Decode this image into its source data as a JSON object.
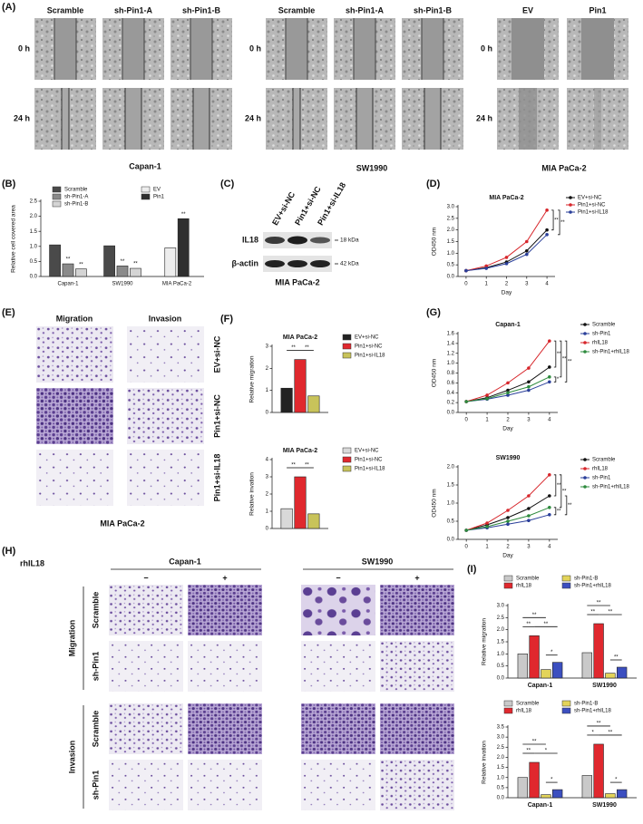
{
  "panel_labels": {
    "A": "(A)",
    "B": "(B)",
    "C": "(C)",
    "D": "(D)",
    "E": "(E)",
    "F": "(F)",
    "G": "(G)",
    "H": "(H)",
    "I": "(I)"
  },
  "figure": {
    "A": {
      "columns_1": [
        "Scramble",
        "sh-Pin1-A",
        "sh-Pin1-B"
      ],
      "columns_2": [
        "Scramble",
        "sh-Pin1-A",
        "sh-Pin1-B"
      ],
      "columns_3": [
        "EV",
        "Pin1"
      ],
      "rows": [
        "0 h",
        "24 h"
      ],
      "cell_lines": [
        "Capan-1",
        "SW1990",
        "MIA PaCa-2"
      ]
    },
    "C": {
      "lanes": [
        "EV+si-NC",
        "Pin1+si-NC",
        "Pin1+si-IL18"
      ],
      "proteins": [
        "IL18",
        "β-actin"
      ],
      "sizes": [
        "18 kDa",
        "42 kDa"
      ],
      "cell_line": "MIA PaCa-2"
    },
    "E": {
      "columns": [
        "Migration",
        "Invasion"
      ],
      "rows": [
        "EV+si-NC",
        "Pin1+si-NC",
        "Pin1+si-IL18"
      ],
      "cell_line": "MIA PaCa-2"
    },
    "H": {
      "treatment": "rhIL18",
      "cell_lines": [
        "Capan-1",
        "SW1990"
      ],
      "levels": [
        "−",
        "+"
      ],
      "assays": [
        "Migration",
        "Invasion"
      ],
      "rows": [
        "Scramble",
        "sh-Pin1"
      ]
    }
  },
  "chart_data": [
    {
      "type": "bar",
      "ylabel": "Relative cell covered area",
      "categories": [
        "Capan-1",
        "SW1990",
        "MIA PaCa-2"
      ],
      "series": [
        {
          "name": "Scramble",
          "color": "#4a4a4a",
          "values": [
            1.05,
            1.02,
            null
          ]
        },
        {
          "name": "sh-Pin1-A",
          "color": "#8a8a8a",
          "values": [
            0.42,
            0.35,
            null
          ],
          "significance": [
            "**",
            "**",
            null
          ]
        },
        {
          "name": "sh-Pin1-B",
          "color": "#d4d4d4",
          "values": [
            0.25,
            0.27,
            null
          ],
          "significance": [
            "**",
            "**",
            null
          ]
        },
        {
          "name": "EV",
          "color": "#ededed",
          "values": [
            null,
            null,
            0.95
          ]
        },
        {
          "name": "Pin1",
          "color": "#2f2f2f",
          "values": [
            null,
            null,
            1.92
          ],
          "significance": [
            null,
            null,
            "**"
          ]
        }
      ],
      "ylim": [
        0,
        2.5
      ],
      "yticks": [
        {
          "value": 0,
          "label": "0.0"
        },
        0.5,
        {
          "value": 1,
          "label": "1.0"
        },
        1.5,
        {
          "value": 2,
          "label": "2.0"
        },
        2.5
      ]
    },
    {
      "type": "line",
      "title": "MIA PaCa-2",
      "xlabel": "Day",
      "ylabel": "OD450 nm",
      "x": [
        0,
        1,
        2,
        3,
        4
      ],
      "xlim": [
        -0.4,
        4.4
      ],
      "xticks": [
        0,
        1,
        2,
        3,
        4
      ],
      "ylim": [
        0,
        3
      ],
      "yticks": [
        {
          "value": 0,
          "label": "0.0"
        },
        0.5,
        {
          "value": 1,
          "label": "1.0"
        },
        1.5,
        {
          "value": 2,
          "label": "2.0"
        },
        2.5,
        {
          "value": 3,
          "label": "3.0"
        }
      ],
      "series": [
        {
          "name": "EV+si-NC",
          "color": "#111111",
          "values": [
            0.25,
            0.38,
            0.62,
            1.1,
            2.0
          ]
        },
        {
          "name": "Pin1+si-NC",
          "color": "#d7262b",
          "values": [
            0.25,
            0.45,
            0.82,
            1.5,
            2.85
          ]
        },
        {
          "name": "Pin1+si-IL18",
          "color": "#2a3f9a",
          "values": [
            0.25,
            0.35,
            0.55,
            0.95,
            1.8
          ]
        }
      ],
      "annotations": [
        "**",
        "**"
      ]
    },
    {
      "type": "bar",
      "title": "MIA PaCa-2",
      "ylabel": "Relative migration",
      "categories": [
        null
      ],
      "series": [
        {
          "name": "EV+si-NC",
          "color": "#222222",
          "values": [
            1.1
          ]
        },
        {
          "name": "Pin1+si-NC",
          "color": "#e0282e",
          "values": [
            2.4
          ]
        },
        {
          "name": "Pin1+si-IL18",
          "color": "#c8c35a",
          "values": [
            0.75
          ]
        }
      ],
      "ylim": [
        0,
        3
      ],
      "yticks": [
        0,
        1,
        2,
        3
      ],
      "annotations": [
        "**",
        "**"
      ]
    },
    {
      "type": "bar",
      "title": "MIA PaCa-2",
      "ylabel": "Relative invation",
      "categories": [
        null
      ],
      "series": [
        {
          "name": "EV+si-NC",
          "color": "#d9d9d9",
          "values": [
            1.15
          ]
        },
        {
          "name": "Pin1+si-NC",
          "color": "#e0282e",
          "values": [
            3.0
          ]
        },
        {
          "name": "Pin1+si-IL18",
          "color": "#c8c35a",
          "values": [
            0.85
          ]
        }
      ],
      "ylim": [
        0,
        4
      ],
      "yticks": [
        0,
        1,
        2,
        3,
        4
      ],
      "annotations": [
        "**",
        "**"
      ]
    },
    {
      "type": "line",
      "title": "Capan-1",
      "xlabel": "Day",
      "ylabel": "OD450 nm",
      "x": [
        0,
        1,
        2,
        3,
        4
      ],
      "xlim": [
        -0.4,
        4.4
      ],
      "xticks": [
        0,
        1,
        2,
        3,
        4
      ],
      "ylim": [
        0,
        1.6
      ],
      "yticks": [
        {
          "value": 0,
          "label": "0.0"
        },
        0.2,
        0.4,
        0.6,
        0.8,
        {
          "value": 1,
          "label": "1.0"
        },
        1.2,
        1.4,
        1.6
      ],
      "series": [
        {
          "name": "Scramble",
          "color": "#111111",
          "values": [
            0.22,
            0.3,
            0.45,
            0.62,
            0.92
          ]
        },
        {
          "name": "sh-Pin1",
          "color": "#2a3f9a",
          "values": [
            0.22,
            0.27,
            0.35,
            0.45,
            0.62
          ]
        },
        {
          "name": "rhIL18",
          "color": "#d7262b",
          "values": [
            0.22,
            0.35,
            0.6,
            0.9,
            1.45
          ]
        },
        {
          "name": "sh-Pin1+rhIL18",
          "color": "#2e8b3e",
          "values": [
            0.22,
            0.28,
            0.4,
            0.52,
            0.72
          ]
        }
      ],
      "annotations": [
        "**",
        "*",
        "**",
        "**"
      ]
    },
    {
      "type": "line",
      "title": "SW1990",
      "xlabel": "Day",
      "ylabel": "OD450 nm",
      "x": [
        0,
        1,
        2,
        3,
        4
      ],
      "xlim": [
        -0.4,
        4.4
      ],
      "xticks": [
        0,
        1,
        2,
        3,
        4
      ],
      "ylim": [
        0,
        2
      ],
      "yticks": [
        {
          "value": 0,
          "label": "0.0"
        },
        0.5,
        {
          "value": 1,
          "label": "1.0"
        },
        1.5,
        {
          "value": 2,
          "label": "2.0"
        }
      ],
      "series": [
        {
          "name": "Scramble",
          "color": "#111111",
          "values": [
            0.25,
            0.4,
            0.6,
            0.85,
            1.2
          ]
        },
        {
          "name": "rhIL18",
          "color": "#d7262b",
          "values": [
            0.25,
            0.45,
            0.8,
            1.2,
            1.78
          ]
        },
        {
          "name": "sh-Pin1",
          "color": "#2a3f9a",
          "values": [
            0.25,
            0.32,
            0.42,
            0.52,
            0.68
          ]
        },
        {
          "name": "sh-Pin1+rhIL18",
          "color": "#2e8b3e",
          "values": [
            0.25,
            0.35,
            0.5,
            0.65,
            0.88
          ]
        }
      ],
      "annotations": [
        "**",
        "**",
        "**",
        "**"
      ]
    },
    {
      "type": "bar",
      "ylabel": "Relative migration",
      "categories": [
        "Capan-1",
        "SW1990"
      ],
      "series": [
        {
          "name": "Scramble",
          "color": "#c9c9c9",
          "values": [
            1.0,
            1.05
          ]
        },
        {
          "name": "rhIL18",
          "color": "#e0282e",
          "values": [
            1.75,
            2.25
          ]
        },
        {
          "name": "sh-Pin1-B",
          "color": "#e3d45a",
          "values": [
            0.35,
            0.2
          ]
        },
        {
          "name": "sh-Pin1+rhIL18",
          "color": "#3c4fc0",
          "values": [
            0.65,
            0.45
          ]
        }
      ],
      "ylim": [
        0,
        3
      ],
      "yticks": [
        {
          "value": 0,
          "label": "0.0"
        },
        0.5,
        {
          "value": 1,
          "label": "1.0"
        },
        1.5,
        {
          "value": 2,
          "label": "2.0"
        },
        2.5,
        {
          "value": 3,
          "label": "3.0"
        }
      ],
      "annotations": [
        "**",
        "**",
        "**",
        "*",
        "**",
        "**",
        "**",
        "**"
      ]
    },
    {
      "type": "bar",
      "ylabel": "Relative invation",
      "categories": [
        "Capan-1",
        "SW1990"
      ],
      "series": [
        {
          "name": "Scramble",
          "color": "#c9c9c9",
          "values": [
            1.0,
            1.1
          ]
        },
        {
          "name": "rhIL18",
          "color": "#e0282e",
          "values": [
            1.75,
            2.65
          ]
        },
        {
          "name": "sh-Pin1-B",
          "color": "#e3d45a",
          "values": [
            0.15,
            0.2
          ]
        },
        {
          "name": "sh-Pin1+rhIL18",
          "color": "#3c4fc0",
          "values": [
            0.4,
            0.4
          ]
        }
      ],
      "ylim": [
        0,
        3.5
      ],
      "yticks": [
        {
          "value": 0,
          "label": "0.0"
        },
        0.5,
        {
          "value": 1,
          "label": "1.0"
        },
        1.5,
        {
          "value": 2,
          "label": "2.0"
        },
        2.5,
        {
          "value": 3,
          "label": "3.0"
        },
        3.5
      ],
      "annotations": [
        "**",
        "**",
        "*",
        "*",
        "**",
        "*",
        "**",
        "*"
      ]
    }
  ]
}
